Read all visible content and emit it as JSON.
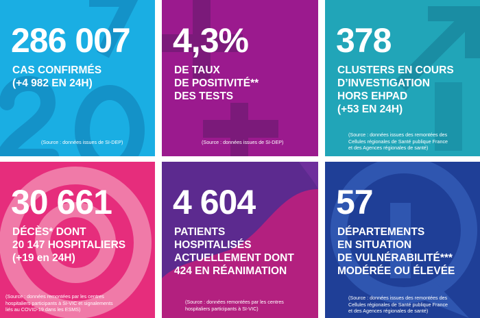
{
  "tiles": [
    {
      "id": "confirmed",
      "color": "#1aaee3",
      "value": "286 007",
      "lines": [
        "CAS CONFIRMÉS",
        "(+4 982 EN 24H)"
      ],
      "source": [
        "(Source : données issues de SI-DEP)"
      ]
    },
    {
      "id": "positivity",
      "color": "#9b1a8e",
      "value": "4,3%",
      "lines": [
        "DE TAUX",
        "DE POSITIVITÉ**",
        "DES TESTS"
      ],
      "source": [
        "(Source : données issues de SI-DEP)"
      ]
    },
    {
      "id": "clusters",
      "color": "#21a5b8",
      "value": "378",
      "lines": [
        "CLUSTERS EN COURS",
        "D’INVESTIGATION",
        "HORS EHPAD",
        "(+53 EN 24H)"
      ],
      "source": [
        "(Source : données issues des remontées des",
        "Cellules régionales de Santé publique France",
        "et des Agences régionales de santé)"
      ]
    },
    {
      "id": "deaths",
      "color": "#e62d7c",
      "value": "30 661",
      "lines": [
        "DÉCÈS* DONT",
        "20 147 HOSPITALIERS",
        "(+19 en 24H)"
      ],
      "source": [
        "(Source : données remontées par les centres",
        "hospitaliers participants à SI-VIC et signalements",
        "liés au COVID-19 dans les ESMS)"
      ]
    },
    {
      "id": "hospitalised",
      "color": "#5c2a8f",
      "value": "4 604",
      "lines": [
        "PATIENTS",
        "HOSPITALISÉS",
        "ACTUELLEMENT DONT",
        "424 EN RÉANIMATION"
      ],
      "source": [
        "(Source : données remontées par les centres",
        "hospitaliers participants à SI-VIC)"
      ]
    },
    {
      "id": "departments",
      "color": "#1f3f97",
      "value": "57",
      "lines": [
        "DÉPARTEMENTS",
        "EN SITUATION",
        "DE VULNÉRABILITÉ***",
        "MODÉRÉE OU ÉLEVÉE"
      ],
      "source": [
        "(Source : données issues des remontées des",
        "Cellules régionales de Santé publique France",
        "et des Agences régionales de santé)"
      ]
    }
  ]
}
